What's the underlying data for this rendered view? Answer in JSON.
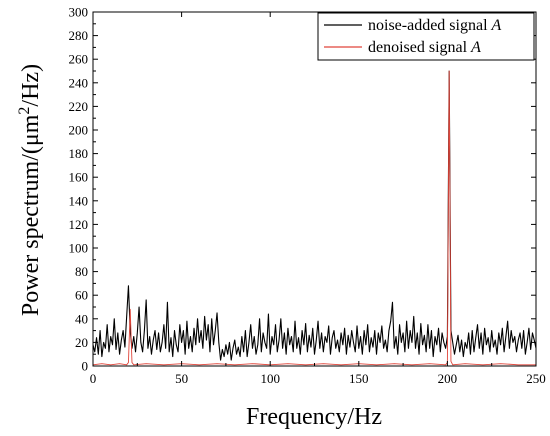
{
  "chart_data": {
    "type": "line",
    "xlabel": "Frequency/Hz",
    "ylabel": {
      "prefix": "Power spectrum/(",
      "mu": "μm",
      "sup": "2",
      "suffix": "/Hz)"
    },
    "xlim": [
      0,
      250
    ],
    "ylim": [
      0,
      300
    ],
    "xticks": [
      0,
      50,
      100,
      150,
      200,
      250
    ],
    "yticks": [
      0,
      20,
      40,
      60,
      80,
      100,
      120,
      140,
      160,
      180,
      200,
      220,
      240,
      260,
      280,
      300
    ],
    "grid": false,
    "legend_position": "top-right",
    "colors": {
      "noise": "#000000",
      "denoised": "#e0453a"
    },
    "series": [
      {
        "name_prefix": "noise-added signal ",
        "name_italic": "A",
        "color": "#000000",
        "points": [
          [
            0,
            18
          ],
          [
            1,
            12
          ],
          [
            2,
            24
          ],
          [
            3,
            10
          ],
          [
            4,
            30
          ],
          [
            5,
            8
          ],
          [
            6,
            20
          ],
          [
            7,
            15
          ],
          [
            8,
            35
          ],
          [
            9,
            12
          ],
          [
            10,
            25
          ],
          [
            11,
            18
          ],
          [
            12,
            40
          ],
          [
            13,
            14
          ],
          [
            14,
            28
          ],
          [
            15,
            10
          ],
          [
            16,
            22
          ],
          [
            17,
            30
          ],
          [
            18,
            16
          ],
          [
            19,
            42
          ],
          [
            20,
            68
          ],
          [
            21,
            30
          ],
          [
            22,
            15
          ],
          [
            23,
            25
          ],
          [
            24,
            12
          ],
          [
            25,
            28
          ],
          [
            26,
            50
          ],
          [
            27,
            20
          ],
          [
            28,
            12
          ],
          [
            29,
            30
          ],
          [
            30,
            56
          ],
          [
            31,
            15
          ],
          [
            32,
            25
          ],
          [
            33,
            10
          ],
          [
            34,
            22
          ],
          [
            35,
            30
          ],
          [
            36,
            14
          ],
          [
            37,
            28
          ],
          [
            38,
            12
          ],
          [
            39,
            20
          ],
          [
            40,
            35
          ],
          [
            41,
            15
          ],
          [
            42,
            54
          ],
          [
            43,
            12
          ],
          [
            44,
            24
          ],
          [
            45,
            8
          ],
          [
            46,
            30
          ],
          [
            47,
            18
          ],
          [
            48,
            12
          ],
          [
            49,
            35
          ],
          [
            50,
            20
          ],
          [
            51,
            30
          ],
          [
            52,
            10
          ],
          [
            53,
            38
          ],
          [
            54,
            15
          ],
          [
            55,
            25
          ],
          [
            56,
            12
          ],
          [
            57,
            32
          ],
          [
            58,
            18
          ],
          [
            59,
            40
          ],
          [
            60,
            20
          ],
          [
            61,
            30
          ],
          [
            62,
            15
          ],
          [
            63,
            42
          ],
          [
            64,
            22
          ],
          [
            65,
            35
          ],
          [
            66,
            12
          ],
          [
            67,
            40
          ],
          [
            68,
            18
          ],
          [
            69,
            30
          ],
          [
            70,
            45
          ],
          [
            71,
            20
          ],
          [
            72,
            5
          ],
          [
            73,
            14
          ],
          [
            74,
            8
          ],
          [
            75,
            18
          ],
          [
            76,
            10
          ],
          [
            77,
            20
          ],
          [
            78,
            5
          ],
          [
            79,
            15
          ],
          [
            80,
            22
          ],
          [
            81,
            10
          ],
          [
            82,
            16
          ],
          [
            83,
            8
          ],
          [
            84,
            25
          ],
          [
            85,
            12
          ],
          [
            86,
            30
          ],
          [
            87,
            8
          ],
          [
            88,
            20
          ],
          [
            89,
            35
          ],
          [
            90,
            15
          ],
          [
            91,
            25
          ],
          [
            92,
            10
          ],
          [
            93,
            18
          ],
          [
            94,
            40
          ],
          [
            95,
            12
          ],
          [
            96,
            28
          ],
          [
            97,
            20
          ],
          [
            98,
            15
          ],
          [
            99,
            44
          ],
          [
            100,
            10
          ],
          [
            101,
            25
          ],
          [
            102,
            18
          ],
          [
            103,
            35
          ],
          [
            104,
            12
          ],
          [
            105,
            22
          ],
          [
            106,
            40
          ],
          [
            107,
            15
          ],
          [
            108,
            28
          ],
          [
            109,
            10
          ],
          [
            110,
            32
          ],
          [
            111,
            18
          ],
          [
            112,
            25
          ],
          [
            113,
            12
          ],
          [
            114,
            38
          ],
          [
            115,
            15
          ],
          [
            116,
            24
          ],
          [
            117,
            10
          ],
          [
            118,
            30
          ],
          [
            119,
            18
          ],
          [
            120,
            36
          ],
          [
            121,
            12
          ],
          [
            122,
            26
          ],
          [
            123,
            16
          ],
          [
            124,
            32
          ],
          [
            125,
            10
          ],
          [
            126,
            22
          ],
          [
            127,
            38
          ],
          [
            128,
            15
          ],
          [
            129,
            28
          ],
          [
            130,
            12
          ],
          [
            131,
            25
          ],
          [
            132,
            20
          ],
          [
            133,
            34
          ],
          [
            134,
            10
          ],
          [
            135,
            24
          ],
          [
            136,
            30
          ],
          [
            137,
            15
          ],
          [
            138,
            22
          ],
          [
            139,
            12
          ],
          [
            140,
            28
          ],
          [
            141,
            18
          ],
          [
            142,
            32
          ],
          [
            143,
            10
          ],
          [
            144,
            26
          ],
          [
            145,
            16
          ],
          [
            146,
            30
          ],
          [
            147,
            20
          ],
          [
            148,
            12
          ],
          [
            149,
            34
          ],
          [
            150,
            15
          ],
          [
            151,
            25
          ],
          [
            152,
            10
          ],
          [
            153,
            30
          ],
          [
            154,
            18
          ],
          [
            155,
            35
          ],
          [
            156,
            12
          ],
          [
            157,
            24
          ],
          [
            158,
            16
          ],
          [
            159,
            30
          ],
          [
            160,
            10
          ],
          [
            161,
            28
          ],
          [
            162,
            20
          ],
          [
            163,
            34
          ],
          [
            164,
            15
          ],
          [
            165,
            22
          ],
          [
            166,
            12
          ],
          [
            167,
            30
          ],
          [
            168,
            38
          ],
          [
            169,
            54
          ],
          [
            170,
            15
          ],
          [
            171,
            25
          ],
          [
            172,
            10
          ],
          [
            173,
            35
          ],
          [
            174,
            20
          ],
          [
            175,
            28
          ],
          [
            176,
            12
          ],
          [
            177,
            38
          ],
          [
            178,
            15
          ],
          [
            179,
            30
          ],
          [
            180,
            20
          ],
          [
            181,
            42
          ],
          [
            182,
            15
          ],
          [
            183,
            28
          ],
          [
            184,
            10
          ],
          [
            185,
            36
          ],
          [
            186,
            18
          ],
          [
            187,
            26
          ],
          [
            188,
            12
          ],
          [
            189,
            35
          ],
          [
            190,
            15
          ],
          [
            191,
            30
          ],
          [
            192,
            8
          ],
          [
            193,
            25
          ],
          [
            194,
            18
          ],
          [
            195,
            32
          ],
          [
            196,
            12
          ],
          [
            197,
            28
          ],
          [
            198,
            20
          ],
          [
            199,
            15
          ],
          [
            200,
            25
          ],
          [
            201,
            250
          ],
          [
            202,
            30
          ],
          [
            203,
            20
          ],
          [
            204,
            10
          ],
          [
            205,
            18
          ],
          [
            206,
            26
          ],
          [
            207,
            12
          ],
          [
            208,
            22
          ],
          [
            209,
            8
          ],
          [
            210,
            20
          ],
          [
            211,
            15
          ],
          [
            212,
            28
          ],
          [
            213,
            10
          ],
          [
            214,
            30
          ],
          [
            215,
            12
          ],
          [
            216,
            24
          ],
          [
            217,
            35
          ],
          [
            218,
            15
          ],
          [
            219,
            28
          ],
          [
            220,
            10
          ],
          [
            221,
            32
          ],
          [
            222,
            18
          ],
          [
            223,
            24
          ],
          [
            224,
            12
          ],
          [
            225,
            30
          ],
          [
            226,
            16
          ],
          [
            227,
            22
          ],
          [
            228,
            10
          ],
          [
            229,
            28
          ],
          [
            230,
            18
          ],
          [
            231,
            32
          ],
          [
            232,
            12
          ],
          [
            233,
            25
          ],
          [
            234,
            38
          ],
          [
            235,
            15
          ],
          [
            236,
            30
          ],
          [
            237,
            20
          ],
          [
            238,
            25
          ],
          [
            239,
            12
          ],
          [
            240,
            22
          ],
          [
            241,
            28
          ],
          [
            242,
            15
          ],
          [
            243,
            30
          ],
          [
            244,
            10
          ],
          [
            245,
            20
          ],
          [
            246,
            32
          ],
          [
            247,
            14
          ],
          [
            248,
            28
          ],
          [
            249,
            22
          ],
          [
            250,
            15
          ]
        ]
      },
      {
        "name_prefix": "denoised signal ",
        "name_italic": "A",
        "color": "#e0453a",
        "points": [
          [
            0,
            1
          ],
          [
            5,
            2
          ],
          [
            10,
            1
          ],
          [
            15,
            2
          ],
          [
            19,
            1
          ],
          [
            20,
            3
          ],
          [
            21,
            48
          ],
          [
            22,
            3
          ],
          [
            23,
            1
          ],
          [
            30,
            2
          ],
          [
            40,
            1
          ],
          [
            50,
            2
          ],
          [
            60,
            1
          ],
          [
            70,
            2
          ],
          [
            80,
            1
          ],
          [
            90,
            2
          ],
          [
            100,
            1
          ],
          [
            110,
            2
          ],
          [
            120,
            1
          ],
          [
            130,
            2
          ],
          [
            140,
            1
          ],
          [
            150,
            2
          ],
          [
            160,
            1
          ],
          [
            170,
            2
          ],
          [
            180,
            1
          ],
          [
            190,
            2
          ],
          [
            199,
            1
          ],
          [
            200,
            3
          ],
          [
            201,
            250
          ],
          [
            202,
            4
          ],
          [
            203,
            1
          ],
          [
            210,
            2
          ],
          [
            220,
            1
          ],
          [
            230,
            2
          ],
          [
            240,
            1
          ],
          [
            250,
            1
          ]
        ]
      }
    ]
  }
}
